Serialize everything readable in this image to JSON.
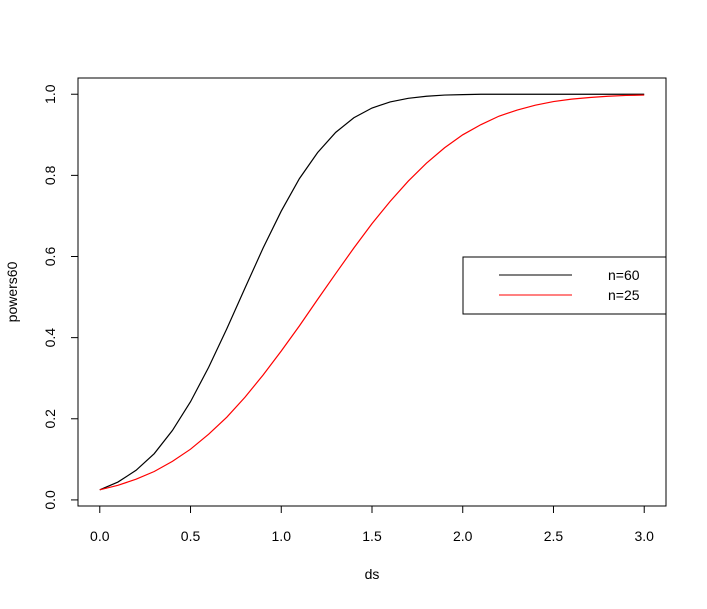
{
  "chart_data": {
    "type": "line",
    "xlabel": "ds",
    "ylabel": "powers60",
    "x": [
      0,
      0.1,
      0.2,
      0.3,
      0.4,
      0.5,
      0.6,
      0.7,
      0.8,
      0.9,
      1,
      1.1,
      1.2,
      1.3,
      1.4,
      1.5,
      1.6,
      1.7,
      1.8,
      1.9,
      2,
      2.1,
      2.2,
      2.3,
      2.4,
      2.5,
      2.6,
      2.7,
      2.8,
      2.9,
      3
    ],
    "series": [
      {
        "name": "n=60",
        "color": "#000000",
        "values": [
          0.025,
          0.044,
          0.073,
          0.114,
          0.171,
          0.242,
          0.327,
          0.422,
          0.522,
          0.621,
          0.712,
          0.792,
          0.856,
          0.906,
          0.942,
          0.966,
          0.981,
          0.99,
          0.995,
          0.998,
          0.999,
          1,
          1,
          1,
          1,
          1,
          1,
          1,
          1,
          1,
          1
        ]
      },
      {
        "name": "n=25",
        "color": "#ff0000",
        "values": [
          0.025,
          0.036,
          0.051,
          0.07,
          0.095,
          0.125,
          0.162,
          0.204,
          0.253,
          0.308,
          0.367,
          0.429,
          0.494,
          0.558,
          0.621,
          0.681,
          0.736,
          0.786,
          0.83,
          0.868,
          0.9,
          0.925,
          0.946,
          0.961,
          0.973,
          0.982,
          0.988,
          0.992,
          0.995,
          0.997,
          0.998
        ]
      }
    ],
    "xlim": [
      -0.12,
      3.12
    ],
    "xticks": [
      {
        "value": 0,
        "label": "0.0"
      },
      0.5,
      {
        "value": 1,
        "label": "1.0"
      },
      1.5,
      {
        "value": 2,
        "label": "2.0"
      },
      2.5,
      {
        "value": 3,
        "label": "3.0"
      }
    ],
    "ylim": [
      -0.015,
      1.04
    ],
    "yticks": [
      {
        "value": 0,
        "label": "0.0"
      },
      0.2,
      0.4,
      0.6,
      0.8,
      {
        "value": 1,
        "label": "1.0"
      }
    ],
    "grid": false,
    "legend": "right"
  }
}
